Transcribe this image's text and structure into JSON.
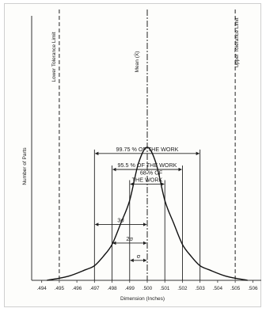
{
  "chart_data": {
    "type": "line",
    "title": "",
    "xlabel": "Dimension (Inches)",
    "ylabel": "Number of Parts",
    "x_ticks": [
      ".494",
      ".495",
      ".496",
      ".497",
      ".498",
      ".499",
      ".500",
      ".501",
      ".502",
      ".503",
      ".504",
      ".505",
      ".506"
    ],
    "xlim": [
      0.4937,
      0.5063
    ],
    "mean": 0.5,
    "sigma": 0.001,
    "lower_tolerance_limit": 0.495,
    "upper_tolerance_limit": 0.505,
    "curve": {
      "x": [
        0.4943,
        0.4955,
        0.4965,
        0.497,
        0.4975,
        0.498,
        0.4985,
        0.499,
        0.4995,
        0.5,
        0.5005,
        0.501,
        0.5015,
        0.502,
        0.5025,
        0.503,
        0.5035,
        0.5045,
        0.5057
      ],
      "y": [
        0.0,
        0.03,
        0.08,
        0.11,
        0.18,
        0.27,
        0.43,
        0.6,
        0.88,
        1.0,
        0.88,
        0.6,
        0.43,
        0.27,
        0.18,
        0.11,
        0.08,
        0.03,
        0.0
      ]
    },
    "labels": {
      "lower_limit": "Lower Tolerance Limit",
      "upper_limit": "Upper Tolerance Limit",
      "mean": "Mean (X̄)",
      "band_99": "99.75 % OF THE WORK",
      "band_95": "95.5 % OF THE WORK",
      "band_68_line1": "68 % OF",
      "band_68_line2": "THE WORK",
      "sigma3": "3σ",
      "sigma2": "2σ",
      "sigma1": "σ"
    },
    "bands": [
      {
        "from": 0.497,
        "to": 0.503,
        "label_key": "band_99",
        "y_frac": 0.83
      },
      {
        "from": 0.498,
        "to": 0.502,
        "label_key": "band_95",
        "y_frac": 0.71
      },
      {
        "from": 0.499,
        "to": 0.501,
        "label_key": "band_68",
        "y_frac": 0.6
      }
    ],
    "sigma_arrows": [
      {
        "k": 3,
        "label_key": "sigma3",
        "y_frac": 0.42
      },
      {
        "k": 2,
        "label_key": "sigma2",
        "y_frac": 0.28
      },
      {
        "k": 1,
        "label_key": "sigma1",
        "y_frac": 0.15
      }
    ]
  }
}
